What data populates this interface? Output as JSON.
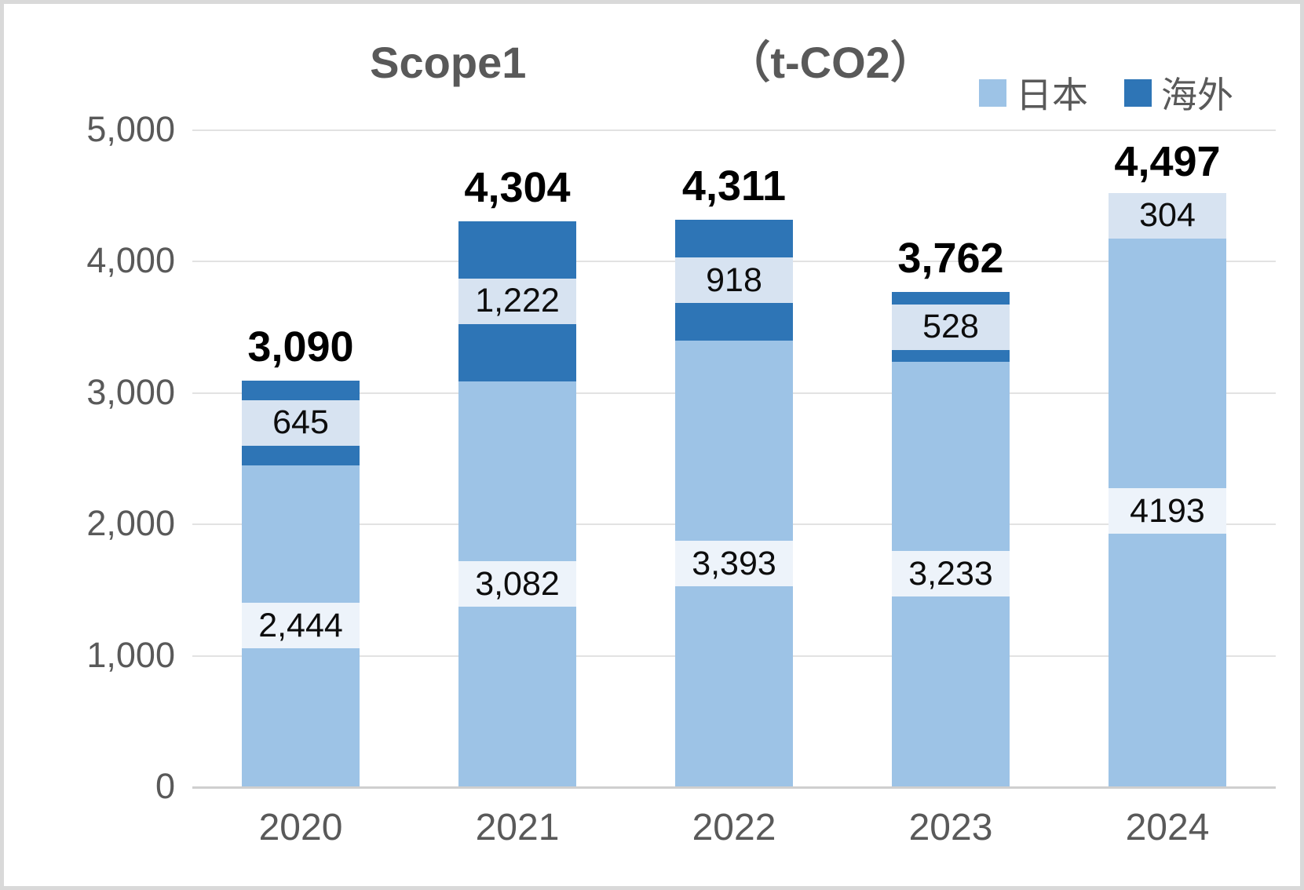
{
  "title": {
    "text": "Scope1　（t-CO2）",
    "part1": "Scope1",
    "part2": "（t-CO2）"
  },
  "legend": [
    {
      "label": "日本",
      "color": "#9dc3e6"
    },
    {
      "label": "海外",
      "color": "#2e75b6"
    }
  ],
  "colors": {
    "japan_bar": "#9dc3e6",
    "overseas_bar": "#2e75b6",
    "japan_label_bg": "#edf3fa",
    "overseas_label_bg": "#d7e3f1",
    "axis_text": "#595959",
    "grid_line": "#e2e2e2",
    "frame_border": "#d9d9d9"
  },
  "chart_data": {
    "type": "bar",
    "stacked": true,
    "title": "Scope1　（t-CO2）",
    "categories": [
      "2020",
      "2021",
      "2022",
      "2023",
      "2024"
    ],
    "series": [
      {
        "name": "日本",
        "color": "#9dc3e6",
        "label_bg": "#edf3fa",
        "values": [
          2444,
          3082,
          3393,
          3233,
          4193
        ],
        "labels": [
          "2,444",
          "3,082",
          "3,393",
          "3,233",
          "4193"
        ]
      },
      {
        "name": "海外",
        "color": "#2e75b6",
        "label_bg": "#d7e3f1",
        "values": [
          645,
          1222,
          918,
          528,
          304
        ],
        "labels": [
          "645",
          "1,222",
          "918",
          "528",
          "304"
        ]
      }
    ],
    "totals": [
      3090,
      4304,
      4311,
      3762,
      4497
    ],
    "total_labels": [
      "3,090",
      "4,304",
      "4,311",
      "3,762",
      "4,497"
    ],
    "xlabel": "",
    "ylabel": "",
    "ylim": [
      0,
      5000
    ],
    "ytick_values": [
      5000,
      4000,
      3000,
      2000,
      1000,
      0
    ],
    "ytick_labels": [
      "5,000",
      "4,000",
      "3,000",
      "2,000",
      "1,000",
      "0"
    ],
    "grid": true,
    "legend_position": "top-right"
  }
}
